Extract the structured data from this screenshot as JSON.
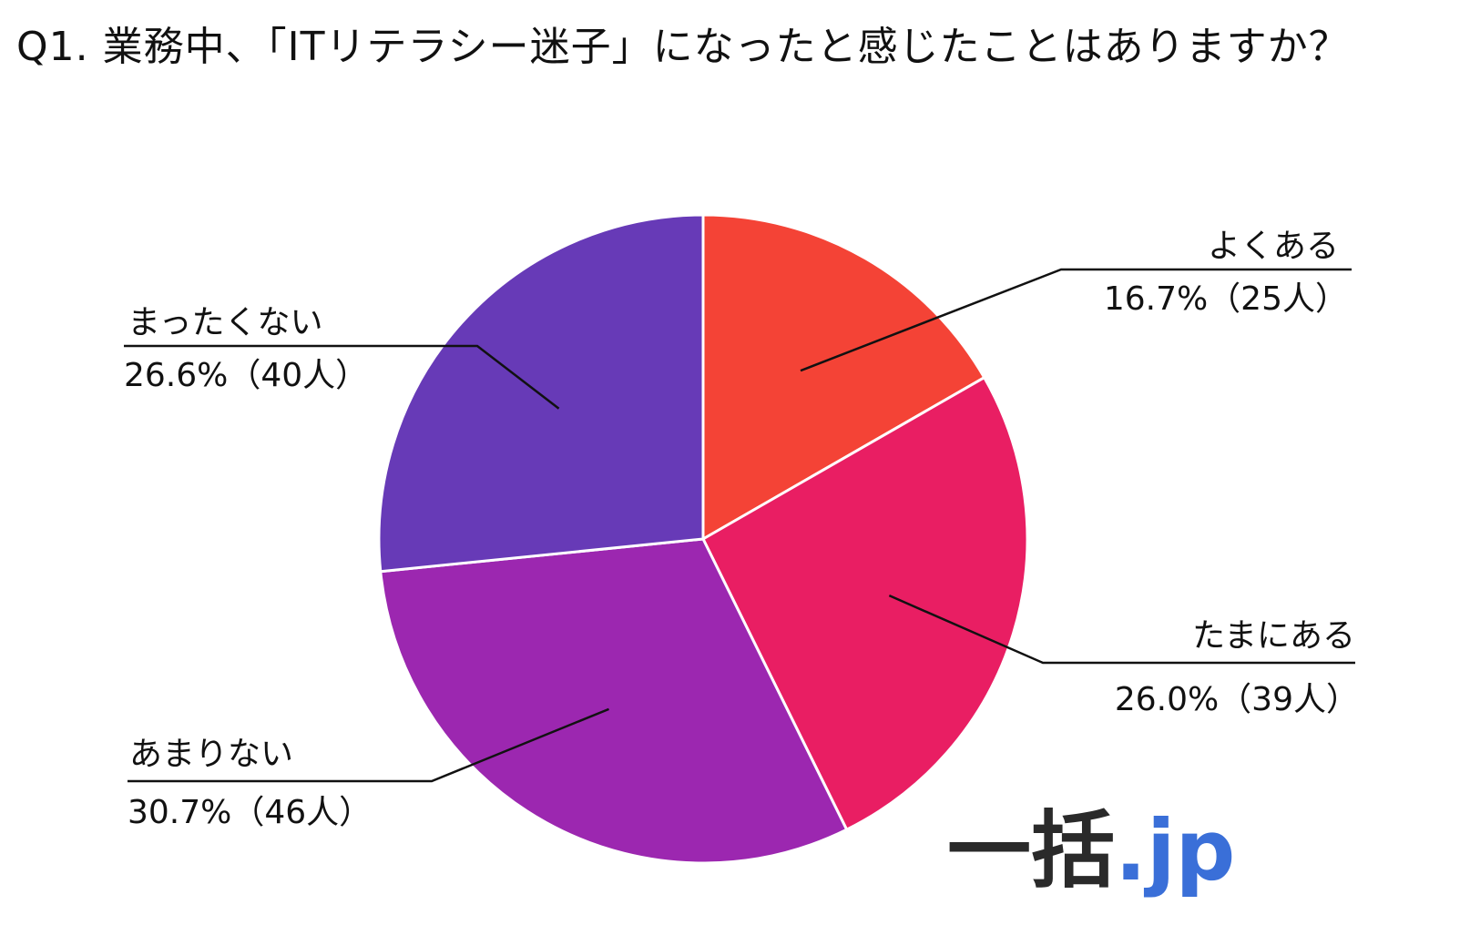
{
  "chart_data": {
    "type": "pie",
    "title": "Q1. 業務中、「ITリテラシー迷子」になったと感じたことはありますか？",
    "categories": [
      "よくある",
      "たまにある",
      "あまりない",
      "まったくない"
    ],
    "values": [
      16.7,
      26.0,
      30.7,
      26.6
    ],
    "value_labels": [
      "16.7%（25人）",
      "26.0%（39人）",
      "30.7%（46人）",
      "26.6%（40人）"
    ],
    "counts": [
      25,
      39,
      46,
      40
    ],
    "colors": [
      "#f44336",
      "#e91e63",
      "#9c27b0",
      "#673ab7"
    ]
  },
  "logo": {
    "main": "一括",
    "suffix": ".jp"
  }
}
